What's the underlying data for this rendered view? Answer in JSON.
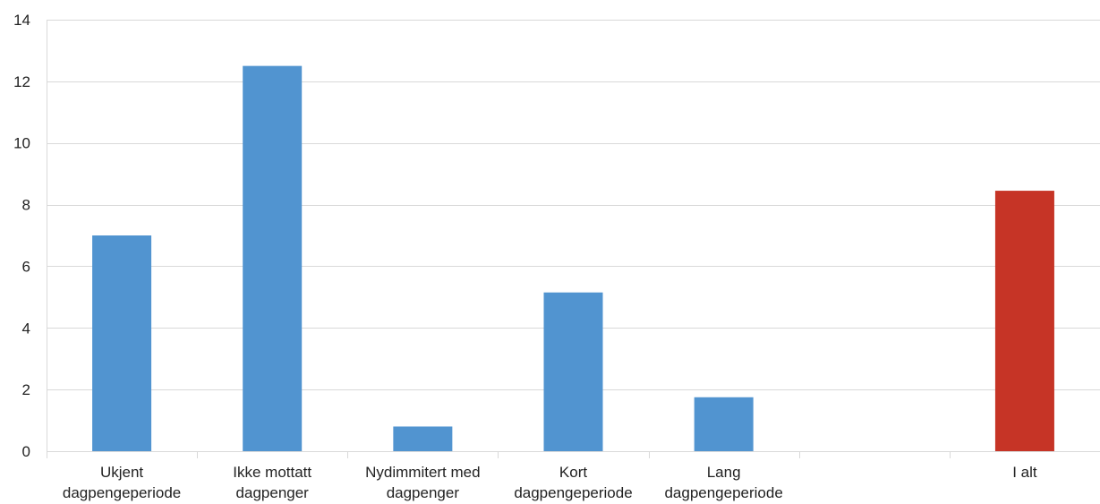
{
  "chart_data": {
    "type": "bar",
    "title": "",
    "xlabel": "",
    "ylabel": "",
    "ylim": [
      0,
      14
    ],
    "yticks": [
      0,
      2,
      4,
      6,
      8,
      10,
      12,
      14
    ],
    "grid": true,
    "legend": "none",
    "categories": [
      [
        "Ukjent",
        "dagpengeperiode"
      ],
      [
        "Ikke mottatt",
        "dagpenger"
      ],
      [
        "Nydimmitert med",
        "dagpenger"
      ],
      [
        "Kort",
        "dagpengeperiode"
      ],
      [
        "Lang",
        "dagpengeperiode"
      ],
      [
        ""
      ],
      [
        "I alt"
      ]
    ],
    "values": [
      7.0,
      12.5,
      0.8,
      5.15,
      1.75,
      null,
      8.45
    ],
    "colors": [
      "#5194d0",
      "#5194d0",
      "#5194d0",
      "#5194d0",
      "#5194d0",
      null,
      "#c63426"
    ]
  },
  "colors": {
    "gridline": "#d9d9d9",
    "axis": "#d9d9d9",
    "text": "#222222"
  }
}
